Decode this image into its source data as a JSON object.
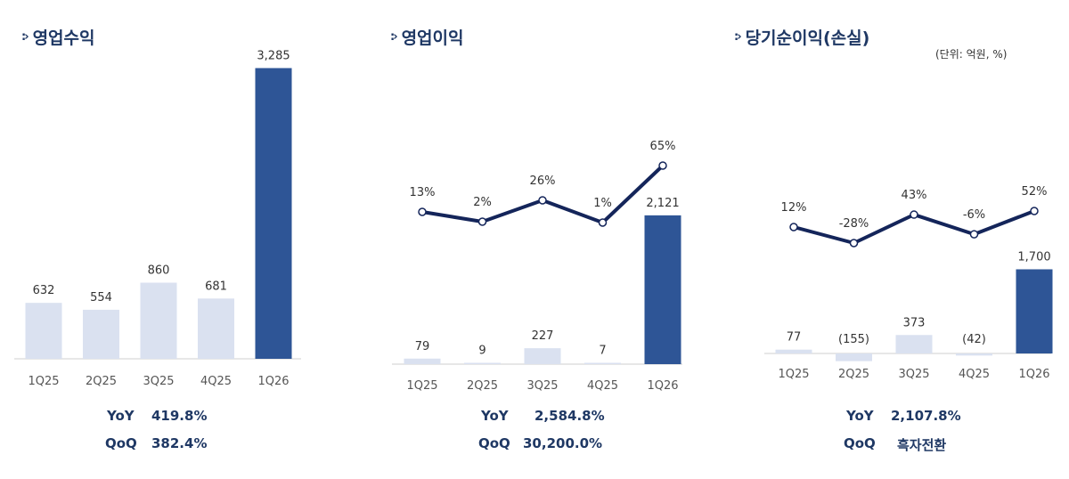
{
  "unit_note": "(단위: 억원, %)",
  "colors": {
    "accent": "#2e5596",
    "light_bar": "#dae1f0",
    "line": "#14255a",
    "title": "#1f3864"
  },
  "chart_data": [
    {
      "type": "bar",
      "title": "영업수익",
      "categories": [
        "1Q25",
        "2Q25",
        "3Q25",
        "4Q25",
        "1Q26"
      ],
      "values": [
        632,
        554,
        860,
        681,
        3285
      ],
      "value_labels": [
        "632",
        "554",
        "860",
        "681",
        "3,285"
      ],
      "highlight_index": 4,
      "stats": [
        {
          "label": "YoY",
          "value": "419.8%"
        },
        {
          "label": "QoQ",
          "value": "382.4%"
        }
      ]
    },
    {
      "type": "bar+line",
      "title": "영업이익",
      "categories": [
        "1Q25",
        "2Q25",
        "3Q25",
        "4Q25",
        "1Q26"
      ],
      "values": [
        79,
        9,
        227,
        7,
        2121
      ],
      "value_labels": [
        "79",
        "9",
        "227",
        "7",
        "2,121"
      ],
      "margins": [
        13,
        2,
        26,
        1,
        65
      ],
      "margin_labels": [
        "13%",
        "2%",
        "26%",
        "1%",
        "65%"
      ],
      "highlight_index": 4,
      "stats": [
        {
          "label": "YoY",
          "value": "2,584.8%"
        },
        {
          "label": "QoQ",
          "value": "30,200.0%"
        }
      ]
    },
    {
      "type": "bar+line",
      "title": "당기순이익(손실)",
      "categories": [
        "1Q25",
        "2Q25",
        "3Q25",
        "4Q25",
        "1Q26"
      ],
      "values": [
        77,
        -155,
        373,
        -42,
        1700
      ],
      "value_labels": [
        "77",
        "(155)",
        "373",
        "(42)",
        "1,700"
      ],
      "margins": [
        12,
        -28,
        43,
        -6,
        52
      ],
      "margin_labels": [
        "12%",
        "-28%",
        "43%",
        "-6%",
        "52%"
      ],
      "highlight_index": 4,
      "stats": [
        {
          "label": "YoY",
          "value": "2,107.8%"
        },
        {
          "label": "QoQ",
          "value": "흑자전환"
        }
      ]
    }
  ]
}
